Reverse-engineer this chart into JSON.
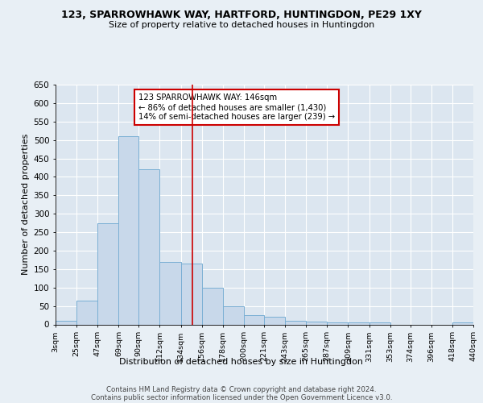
{
  "title": "123, SPARROWHAWK WAY, HARTFORD, HUNTINGDON, PE29 1XY",
  "subtitle": "Size of property relative to detached houses in Huntingdon",
  "xlabel": "Distribution of detached houses by size in Huntingdon",
  "ylabel": "Number of detached properties",
  "bar_color": "#c8d8ea",
  "bar_edge_color": "#7aafd4",
  "background_color": "#e8eff5",
  "plot_bg_color": "#dce6f0",
  "grid_color": "#ffffff",
  "vline_value": 146,
  "vline_color": "#cc0000",
  "annotation_text": "123 SPARROWHAWK WAY: 146sqm\n← 86% of detached houses are smaller (1,430)\n14% of semi-detached houses are larger (239) →",
  "annotation_box_color": "#ffffff",
  "annotation_box_edge": "#cc0000",
  "footer_text": "Contains HM Land Registry data © Crown copyright and database right 2024.\nContains public sector information licensed under the Open Government Licence v3.0.",
  "bins": [
    3,
    25,
    47,
    69,
    90,
    112,
    134,
    156,
    178,
    200,
    221,
    243,
    265,
    287,
    309,
    331,
    353,
    374,
    396,
    418,
    440
  ],
  "counts": [
    10,
    65,
    275,
    510,
    420,
    170,
    165,
    100,
    50,
    25,
    20,
    10,
    8,
    5,
    5,
    5,
    0,
    0,
    0,
    5
  ],
  "ylim": [
    0,
    650
  ],
  "yticks": [
    0,
    50,
    100,
    150,
    200,
    250,
    300,
    350,
    400,
    450,
    500,
    550,
    600,
    650
  ]
}
